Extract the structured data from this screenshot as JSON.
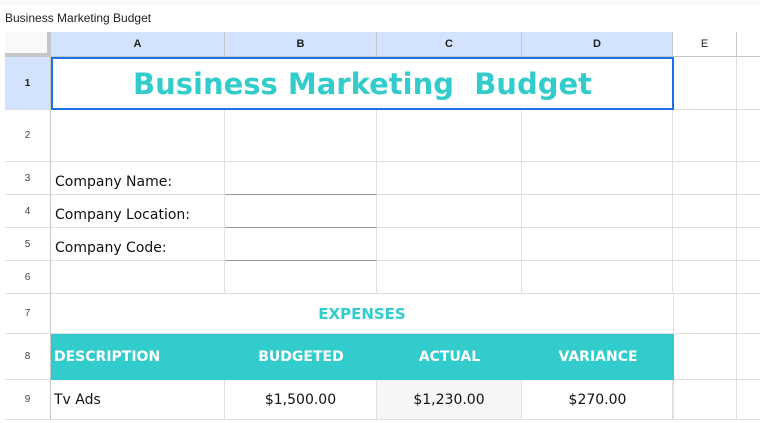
{
  "formula_bar": {
    "content": "Business Marketing  Budget"
  },
  "columns": [
    "A",
    "B",
    "C",
    "D",
    "E"
  ],
  "rows": [
    "1",
    "2",
    "3",
    "4",
    "5",
    "6",
    "7",
    "8",
    "9"
  ],
  "title": "Business Marketing  Budget",
  "company": {
    "name_label": "Company Name:",
    "location_label": "Company Location:",
    "code_label": "Company Code:"
  },
  "expenses": {
    "heading": "EXPENSES",
    "headers": [
      "DESCRIPTION",
      "BUDGETED",
      "ACTUAL",
      "VARIANCE"
    ],
    "rows": [
      {
        "description": "Tv Ads",
        "budgeted": "$1,500.00",
        "actual": "$1,230.00",
        "variance": "$270.00"
      }
    ]
  },
  "colors": {
    "accent": "#33cccc",
    "selection": "#1a73e8",
    "header_selected": "#d3e3fd"
  }
}
